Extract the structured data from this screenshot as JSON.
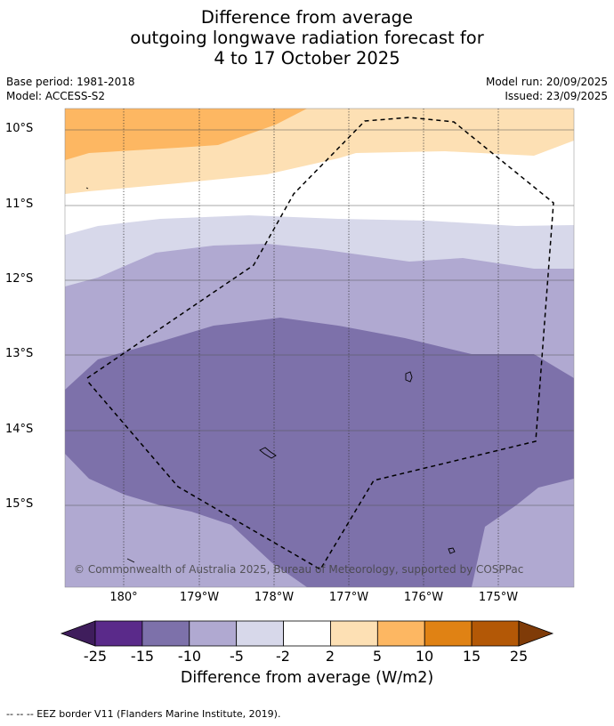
{
  "title": {
    "line1": "Difference from average",
    "line2": "outgoing longwave radiation forecast for",
    "line3": "4 to 17 October 2025"
  },
  "meta": {
    "base_period": "Base period: 1981-2018",
    "model": "Model: ACCESS-S2",
    "model_run": "Model run: 20/09/2025",
    "issued": "Issued: 23/09/2025"
  },
  "map": {
    "lat_labels": [
      "10°S",
      "11°S",
      "12°S",
      "13°S",
      "14°S",
      "15°S"
    ],
    "lon_labels": [
      "180°",
      "179°W",
      "178°W",
      "177°W",
      "176°W",
      "175°W"
    ],
    "copyright": "© Commonwealth of Australia 2025, Bureau of Meteorology, supported by COSPPac",
    "region_labels": {
      "orange": "+5 to +10 W/m2",
      "light_orange": "+2 to +5 W/m2",
      "white": "-2 to +2 W/m2",
      "light_purple": "-5 to -2 W/m2",
      "mid_purple": "-10 to -5 W/m2",
      "dark_purple": "-15 to -10 W/m2"
    }
  },
  "colorbar": {
    "ticks": [
      "-25",
      "-15",
      "-10",
      "-5",
      "-2",
      "2",
      "5",
      "10",
      "15",
      "25"
    ],
    "colors": [
      "#3f1d5c",
      "#5a2a8a",
      "#7d71aa",
      "#b0a9d1",
      "#d7d8ea",
      "#ffffff",
      "#fde0b4",
      "#fdb762",
      "#e08214",
      "#b35806",
      "#7f3b08"
    ],
    "label": "Difference from average (W/m2)"
  },
  "footer": "--  --  -- EEZ border V11 (Flanders Marine Institute, 2019)."
}
